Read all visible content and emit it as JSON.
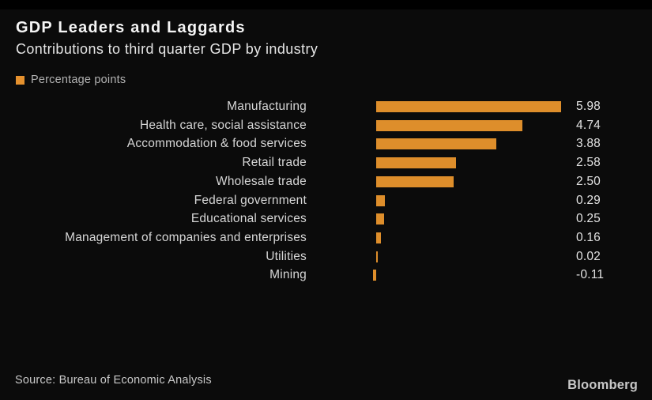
{
  "header": {
    "title": "GDP Leaders and Laggards",
    "subtitle": "Contributions to third quarter GDP by industry"
  },
  "legend": {
    "label": "Percentage points",
    "swatch_color": "#E5912E"
  },
  "chart_data": {
    "type": "bar",
    "orientation": "horizontal",
    "title": "GDP Leaders and Laggards",
    "subtitle": "Contributions to third quarter GDP by industry",
    "unit": "Percentage points",
    "categories": [
      "Manufacturing",
      "Health care, social assistance",
      "Accommodation & food services",
      "Retail trade",
      "Wholesale trade",
      "Federal government",
      "Educational services",
      "Management of companies and enterprises",
      "Utilities",
      "Mining"
    ],
    "values": [
      5.98,
      4.74,
      3.88,
      2.58,
      2.5,
      0.29,
      0.25,
      0.16,
      0.02,
      -0.11
    ],
    "value_labels": [
      "5.98",
      "4.74",
      "3.88",
      "2.58",
      "2.50",
      "0.29",
      "0.25",
      "0.16",
      "0.02",
      "-0.11"
    ],
    "bar_color": "#DE8E2B",
    "xlim": [
      -0.2,
      6.0
    ],
    "grid": false,
    "legend_position": "top-left",
    "background_color": "#0b0b0b"
  },
  "footer": {
    "source": "Source: Bureau of Economic Analysis",
    "brand": "Bloomberg"
  }
}
